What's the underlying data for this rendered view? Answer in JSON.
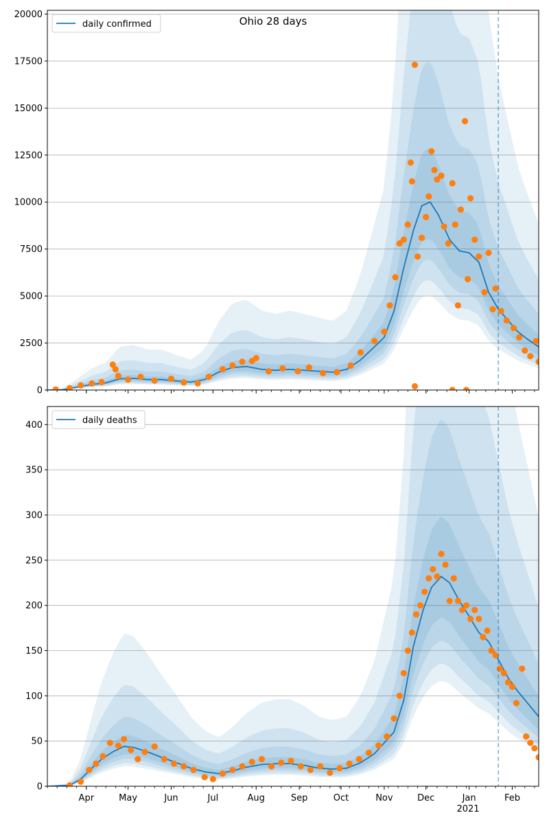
{
  "figure_title": "Ohio 28 days",
  "colors": {
    "model_line": "#1f77b4",
    "observed_points": "#ff7f0e",
    "band": "#1f77b4",
    "grid": "#b0b0b0",
    "forecast_marker": "#1f77b4"
  },
  "x_axis": {
    "ticks": [
      {
        "date": "2020-04-01",
        "label": "Apr"
      },
      {
        "date": "2020-05-01",
        "label": "May"
      },
      {
        "date": "2020-06-01",
        "label": "Jun"
      },
      {
        "date": "2020-07-01",
        "label": "Jul"
      },
      {
        "date": "2020-08-01",
        "label": "Aug"
      },
      {
        "date": "2020-09-01",
        "label": "Sep"
      },
      {
        "date": "2020-10-01",
        "label": "Oct"
      },
      {
        "date": "2020-11-01",
        "label": "Nov"
      },
      {
        "date": "2020-12-01",
        "label": "Dec"
      },
      {
        "date": "2021-01-01",
        "label": "Jan"
      },
      {
        "date": "2021-02-01",
        "label": "Feb"
      }
    ],
    "year_label": "2021",
    "range": [
      "2020-03-04",
      "2021-02-20"
    ]
  },
  "forecast_start_date": "2021-01-22",
  "chart_data": [
    {
      "type": "line",
      "legend": "daily confirmed",
      "legend_position": "top-left",
      "ylim": [
        0,
        20200
      ],
      "yticks": [
        0,
        2500,
        5000,
        7500,
        10000,
        12500,
        15000,
        17500,
        20000
      ],
      "grid": "horizontal",
      "model": [
        [
          "2020-03-04",
          0
        ],
        [
          "2020-03-15",
          20
        ],
        [
          "2020-03-25",
          150
        ],
        [
          "2020-04-05",
          300
        ],
        [
          "2020-04-15",
          380
        ],
        [
          "2020-04-25",
          600
        ],
        [
          "2020-05-05",
          620
        ],
        [
          "2020-05-15",
          560
        ],
        [
          "2020-05-25",
          560
        ],
        [
          "2020-06-05",
          480
        ],
        [
          "2020-06-15",
          420
        ],
        [
          "2020-06-25",
          560
        ],
        [
          "2020-07-05",
          950
        ],
        [
          "2020-07-15",
          1200
        ],
        [
          "2020-07-25",
          1250
        ],
        [
          "2020-08-05",
          1100
        ],
        [
          "2020-08-15",
          1050
        ],
        [
          "2020-08-25",
          1100
        ],
        [
          "2020-09-05",
          1050
        ],
        [
          "2020-09-15",
          1000
        ],
        [
          "2020-09-25",
          950
        ],
        [
          "2020-10-05",
          1100
        ],
        [
          "2020-10-15",
          1600
        ],
        [
          "2020-10-25",
          2300
        ],
        [
          "2020-11-01",
          2800
        ],
        [
          "2020-11-08",
          4200
        ],
        [
          "2020-11-15",
          6500
        ],
        [
          "2020-11-22",
          8500
        ],
        [
          "2020-11-28",
          9800
        ],
        [
          "2020-12-04",
          10000
        ],
        [
          "2020-12-10",
          9300
        ],
        [
          "2020-12-18",
          8000
        ],
        [
          "2020-12-25",
          7400
        ],
        [
          "2021-01-01",
          7300
        ],
        [
          "2021-01-08",
          6800
        ],
        [
          "2021-01-15",
          5200
        ],
        [
          "2021-01-22",
          4300
        ],
        [
          "2021-01-29",
          3700
        ],
        [
          "2021-02-05",
          3100
        ],
        [
          "2021-02-12",
          2700
        ],
        [
          "2021-02-20",
          2300
        ]
      ],
      "observed": [
        [
          "2020-03-10",
          30
        ],
        [
          "2020-03-20",
          100
        ],
        [
          "2020-03-28",
          250
        ],
        [
          "2020-04-05",
          350
        ],
        [
          "2020-04-12",
          420
        ],
        [
          "2020-04-20",
          1350
        ],
        [
          "2020-04-22",
          1100
        ],
        [
          "2020-04-24",
          750
        ],
        [
          "2020-05-01",
          550
        ],
        [
          "2020-05-10",
          700
        ],
        [
          "2020-05-20",
          500
        ],
        [
          "2020-06-01",
          600
        ],
        [
          "2020-06-10",
          400
        ],
        [
          "2020-06-20",
          350
        ],
        [
          "2020-06-28",
          700
        ],
        [
          "2020-07-08",
          1100
        ],
        [
          "2020-07-15",
          1300
        ],
        [
          "2020-07-22",
          1500
        ],
        [
          "2020-07-29",
          1550
        ],
        [
          "2020-08-01",
          1700
        ],
        [
          "2020-08-10",
          1000
        ],
        [
          "2020-08-20",
          1150
        ],
        [
          "2020-08-31",
          1000
        ],
        [
          "2020-09-08",
          1200
        ],
        [
          "2020-09-18",
          900
        ],
        [
          "2020-09-28",
          950
        ],
        [
          "2020-10-08",
          1300
        ],
        [
          "2020-10-15",
          2000
        ],
        [
          "2020-10-25",
          2600
        ],
        [
          "2020-11-01",
          3100
        ],
        [
          "2020-11-05",
          4500
        ],
        [
          "2020-11-09",
          6000
        ],
        [
          "2020-11-12",
          7800
        ],
        [
          "2020-11-15",
          8000
        ],
        [
          "2020-11-18",
          8800
        ],
        [
          "2020-11-20",
          12100
        ],
        [
          "2020-11-21",
          11100
        ],
        [
          "2020-11-23",
          17300
        ],
        [
          "2020-11-23",
          200
        ],
        [
          "2020-11-25",
          7100
        ],
        [
          "2020-11-28",
          8100
        ],
        [
          "2020-12-01",
          9200
        ],
        [
          "2020-12-03",
          10300
        ],
        [
          "2020-12-05",
          12700
        ],
        [
          "2020-12-07",
          11700
        ],
        [
          "2020-12-09",
          11200
        ],
        [
          "2020-12-12",
          11400
        ],
        [
          "2020-12-14",
          8700
        ],
        [
          "2020-12-17",
          7800
        ],
        [
          "2020-12-20",
          11000
        ],
        [
          "2020-12-22",
          8800
        ],
        [
          "2020-12-24",
          4500
        ],
        [
          "2020-12-26",
          9600
        ],
        [
          "2020-12-29",
          14300
        ],
        [
          "2020-12-31",
          5900
        ],
        [
          "2021-01-02",
          10200
        ],
        [
          "2021-01-05",
          8000
        ],
        [
          "2021-01-08",
          7100
        ],
        [
          "2021-01-12",
          5200
        ],
        [
          "2021-01-15",
          7300
        ],
        [
          "2021-01-18",
          4300
        ],
        [
          "2021-01-20",
          5400
        ],
        [
          "2021-01-24",
          4200
        ],
        [
          "2021-01-28",
          3700
        ],
        [
          "2021-02-02",
          3300
        ],
        [
          "2021-02-06",
          2800
        ],
        [
          "2021-02-10",
          2100
        ],
        [
          "2021-02-14",
          1800
        ],
        [
          "2021-02-18",
          2600
        ],
        [
          "2021-02-20",
          1500
        ],
        [
          "2020-12-20",
          0
        ],
        [
          "2020-12-30",
          0
        ]
      ]
    },
    {
      "type": "line",
      "legend": "daily deaths",
      "legend_position": "top-left",
      "ylim": [
        0,
        420
      ],
      "yticks": [
        0,
        50,
        100,
        150,
        200,
        250,
        300,
        350,
        400
      ],
      "grid": "horizontal",
      "model": [
        [
          "2020-03-04",
          0
        ],
        [
          "2020-03-20",
          1
        ],
        [
          "2020-03-28",
          8
        ],
        [
          "2020-04-05",
          20
        ],
        [
          "2020-04-12",
          30
        ],
        [
          "2020-04-20",
          38
        ],
        [
          "2020-04-28",
          44
        ],
        [
          "2020-05-05",
          43
        ],
        [
          "2020-05-15",
          38
        ],
        [
          "2020-05-25",
          32
        ],
        [
          "2020-06-05",
          26
        ],
        [
          "2020-06-15",
          20
        ],
        [
          "2020-06-25",
          16
        ],
        [
          "2020-07-05",
          14
        ],
        [
          "2020-07-15",
          17
        ],
        [
          "2020-07-25",
          21
        ],
        [
          "2020-08-05",
          24
        ],
        [
          "2020-08-15",
          25
        ],
        [
          "2020-08-25",
          25
        ],
        [
          "2020-09-05",
          23
        ],
        [
          "2020-09-15",
          20
        ],
        [
          "2020-09-25",
          19
        ],
        [
          "2020-10-05",
          20
        ],
        [
          "2020-10-15",
          26
        ],
        [
          "2020-10-25",
          36
        ],
        [
          "2020-11-01",
          48
        ],
        [
          "2020-11-08",
          60
        ],
        [
          "2020-11-15",
          95
        ],
        [
          "2020-11-22",
          155
        ],
        [
          "2020-11-29",
          195
        ],
        [
          "2020-12-05",
          220
        ],
        [
          "2020-12-12",
          232
        ],
        [
          "2020-12-18",
          225
        ],
        [
          "2020-12-25",
          205
        ],
        [
          "2021-01-01",
          188
        ],
        [
          "2021-01-08",
          170
        ],
        [
          "2021-01-15",
          160
        ],
        [
          "2021-01-22",
          140
        ],
        [
          "2021-01-29",
          120
        ],
        [
          "2021-02-05",
          105
        ],
        [
          "2021-02-12",
          92
        ],
        [
          "2021-02-20",
          77
        ]
      ],
      "observed": [
        [
          "2020-03-20",
          1
        ],
        [
          "2020-03-28",
          5
        ],
        [
          "2020-04-03",
          18
        ],
        [
          "2020-04-08",
          25
        ],
        [
          "2020-04-13",
          33
        ],
        [
          "2020-04-18",
          48
        ],
        [
          "2020-04-24",
          45
        ],
        [
          "2020-04-28",
          52
        ],
        [
          "2020-05-03",
          40
        ],
        [
          "2020-05-08",
          30
        ],
        [
          "2020-05-13",
          38
        ],
        [
          "2020-05-20",
          44
        ],
        [
          "2020-05-27",
          30
        ],
        [
          "2020-06-03",
          25
        ],
        [
          "2020-06-10",
          22
        ],
        [
          "2020-06-17",
          18
        ],
        [
          "2020-06-25",
          10
        ],
        [
          "2020-07-01",
          8
        ],
        [
          "2020-07-08",
          14
        ],
        [
          "2020-07-15",
          18
        ],
        [
          "2020-07-22",
          22
        ],
        [
          "2020-07-29",
          27
        ],
        [
          "2020-08-05",
          30
        ],
        [
          "2020-08-12",
          22
        ],
        [
          "2020-08-19",
          26
        ],
        [
          "2020-08-26",
          28
        ],
        [
          "2020-09-02",
          22
        ],
        [
          "2020-09-09",
          18
        ],
        [
          "2020-09-16",
          22
        ],
        [
          "2020-09-23",
          15
        ],
        [
          "2020-09-30",
          20
        ],
        [
          "2020-10-07",
          25
        ],
        [
          "2020-10-14",
          30
        ],
        [
          "2020-10-21",
          37
        ],
        [
          "2020-10-28",
          45
        ],
        [
          "2020-11-03",
          55
        ],
        [
          "2020-11-08",
          75
        ],
        [
          "2020-11-12",
          100
        ],
        [
          "2020-11-15",
          125
        ],
        [
          "2020-11-18",
          150
        ],
        [
          "2020-11-21",
          170
        ],
        [
          "2020-11-24",
          190
        ],
        [
          "2020-11-27",
          200
        ],
        [
          "2020-11-30",
          215
        ],
        [
          "2020-12-03",
          230
        ],
        [
          "2020-12-06",
          240
        ],
        [
          "2020-12-09",
          232
        ],
        [
          "2020-12-12",
          257
        ],
        [
          "2020-12-15",
          245
        ],
        [
          "2020-12-18",
          205
        ],
        [
          "2020-12-21",
          230
        ],
        [
          "2020-12-24",
          205
        ],
        [
          "2020-12-27",
          195
        ],
        [
          "2020-12-30",
          200
        ],
        [
          "2021-01-02",
          185
        ],
        [
          "2021-01-05",
          195
        ],
        [
          "2021-01-08",
          185
        ],
        [
          "2021-01-11",
          165
        ],
        [
          "2021-01-14",
          172
        ],
        [
          "2021-01-17",
          150
        ],
        [
          "2021-01-20",
          145
        ],
        [
          "2021-01-23",
          130
        ],
        [
          "2021-01-26",
          125
        ],
        [
          "2021-01-29",
          115
        ],
        [
          "2021-02-01",
          110
        ],
        [
          "2021-02-04",
          92
        ],
        [
          "2021-02-08",
          130
        ],
        [
          "2021-02-11",
          55
        ],
        [
          "2021-02-14",
          48
        ],
        [
          "2021-02-17",
          42
        ],
        [
          "2021-02-20",
          32
        ]
      ]
    }
  ]
}
